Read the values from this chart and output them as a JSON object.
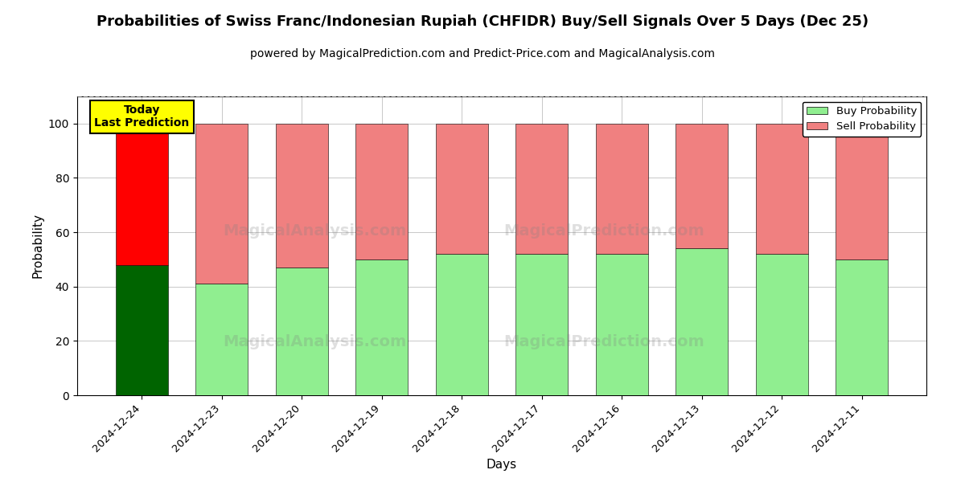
{
  "title": "Probabilities of Swiss Franc/Indonesian Rupiah (CHFIDR) Buy/Sell Signals Over 5 Days (Dec 25)",
  "subtitle": "powered by MagicalPrediction.com and Predict-Price.com and MagicalAnalysis.com",
  "xlabel": "Days",
  "ylabel": "Probability",
  "categories": [
    "2024-12-24",
    "2024-12-23",
    "2024-12-20",
    "2024-12-19",
    "2024-12-18",
    "2024-12-17",
    "2024-12-16",
    "2024-12-13",
    "2024-12-12",
    "2024-12-11"
  ],
  "buy_values": [
    48,
    41,
    47,
    50,
    52,
    52,
    52,
    54,
    52,
    50
  ],
  "sell_values": [
    52,
    59,
    53,
    50,
    48,
    48,
    48,
    46,
    48,
    50
  ],
  "buy_color_today": "#006400",
  "sell_color_today": "#ff0000",
  "buy_color_rest": "#90EE90",
  "sell_color_rest": "#F08080",
  "today_annotation": "Today\nLast Prediction",
  "ylim": [
    0,
    110
  ],
  "yticks": [
    0,
    20,
    40,
    60,
    80,
    100
  ],
  "dashed_line_y": 110,
  "legend_buy_label": "Buy Probability",
  "legend_sell_label": "Sell Probability",
  "background_color": "#ffffff",
  "title_fontsize": 13,
  "subtitle_fontsize": 10,
  "bar_width": 0.65
}
